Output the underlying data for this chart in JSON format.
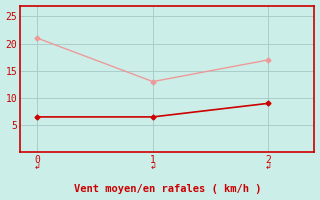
{
  "bg_color": "#cceee8",
  "grid_color": "#aacccc",
  "line1_x": [
    0,
    1,
    2
  ],
  "line1_y": [
    21,
    13,
    17
  ],
  "line1_color": "#ee9999",
  "line1_marker": "D",
  "line1_markersize": 2.5,
  "line1_linewidth": 1.0,
  "line2_x": [
    0,
    1,
    2
  ],
  "line2_y": [
    6.5,
    6.5,
    9
  ],
  "line2_color": "#cc0000",
  "line2_marker": "D",
  "line2_markersize": 2.5,
  "line2_linewidth": 1.2,
  "xlabel": "Vent moyen/en rafales ( km/h )",
  "xlabel_color": "#cc0000",
  "xlabel_fontsize": 7.5,
  "xlim": [
    -0.15,
    2.4
  ],
  "ylim": [
    0,
    27
  ],
  "yticks": [
    5,
    10,
    15,
    20,
    25
  ],
  "xticks": [
    0,
    1,
    2
  ],
  "tick_color": "#cc0000",
  "spine_color": "#cc0000"
}
